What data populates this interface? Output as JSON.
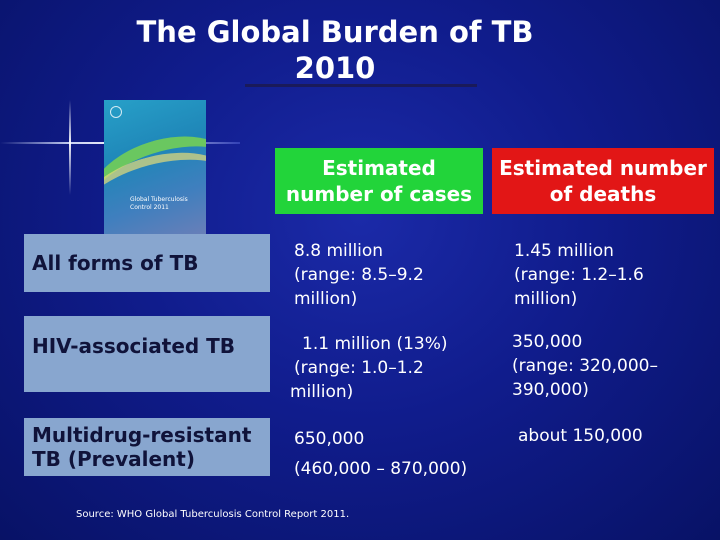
{
  "slide": {
    "title_line1": "The Global Burden of TB",
    "title_line2": "2010"
  },
  "cover": {
    "title": "Global Tuberculosis Control 2011"
  },
  "headers": {
    "cases": [
      "Estimated",
      "number of cases"
    ],
    "deaths": [
      "Estimated number",
      "of deaths"
    ]
  },
  "rows": [
    {
      "label": [
        "All forms of TB"
      ],
      "cases": [
        "8.8 million",
        "(range: 8.5–9.2",
        "million)"
      ],
      "deaths": [
        "1.45 million",
        "(range: 1.2–1.6",
        "million)"
      ]
    },
    {
      "label": [
        "HIV-associated TB"
      ],
      "cases": [
        "1.1 million (13%)",
        "(range: 1.0–1.2",
        "million)"
      ],
      "deaths": [
        "350,000",
        "(range: 320,000–",
        "390,000)"
      ]
    },
    {
      "label": [
        "Multidrug-resistant",
        "TB (Prevalent)"
      ],
      "cases": [
        "650,000",
        "(460,000 – 870,000)"
      ],
      "deaths": [
        "about 150,000"
      ]
    }
  ],
  "source": "Source: WHO Global Tuberculosis Control Report 2011.",
  "colors": {
    "background": "#101c8c",
    "cases_header": "#22d43a",
    "deaths_header": "#e21616",
    "row_label": "#88a6cf"
  }
}
